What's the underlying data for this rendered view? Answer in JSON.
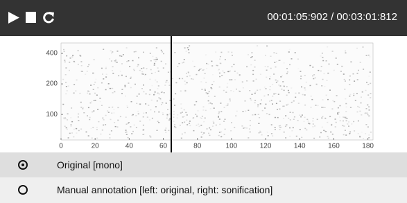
{
  "player": {
    "time": "00:01:05:902 / 00:03:01:812"
  },
  "spectrogram": {
    "xlim": [
      0,
      183
    ],
    "xticks": [
      0,
      20,
      40,
      60,
      80,
      100,
      120,
      140,
      160,
      180
    ],
    "ylim": [
      56,
      507
    ],
    "yscale": "log",
    "yticks": [
      100,
      200,
      400
    ]
  },
  "options": [
    {
      "label": "Original [mono]",
      "selected": true
    },
    {
      "label": "Manual annotation [left: original, right: sonification]",
      "selected": false
    }
  ]
}
